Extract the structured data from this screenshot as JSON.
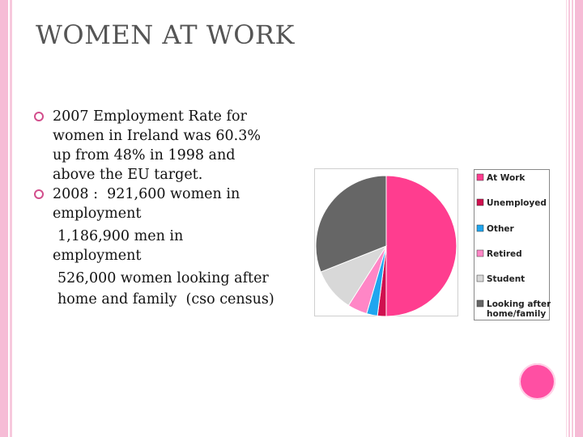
{
  "title": "WOMEN AT WORK",
  "bullets": [
    {
      "lines": [
        "2007 Employment Rate for",
        "women in Ireland was 60.3%",
        "up from 48% in 1998 and",
        "above the EU target."
      ]
    },
    {
      "lines": [
        "2008 :  921,600 women in",
        "employment",
        "1,186,900 men in",
        "employment",
        "526,000 women looking after",
        "home and family  (cso census)"
      ]
    }
  ],
  "chart_data": {
    "type": "pie",
    "labels": [
      "At Work",
      "Unemployed",
      "Other",
      "Retired",
      "Student",
      "Looking after home/family"
    ],
    "values": [
      50,
      2,
      2.5,
      4.5,
      10,
      31
    ],
    "colors": [
      "#ff3d8f",
      "#d0104f",
      "#1fa6ef",
      "#ff86c6",
      "#d8d8d8",
      "#666666"
    ],
    "legend": {
      "position": "right",
      "entries": [
        "At Work",
        "Unemployed",
        "Other",
        "Retired",
        "Student",
        "Looking after",
        "home/family"
      ]
    }
  }
}
